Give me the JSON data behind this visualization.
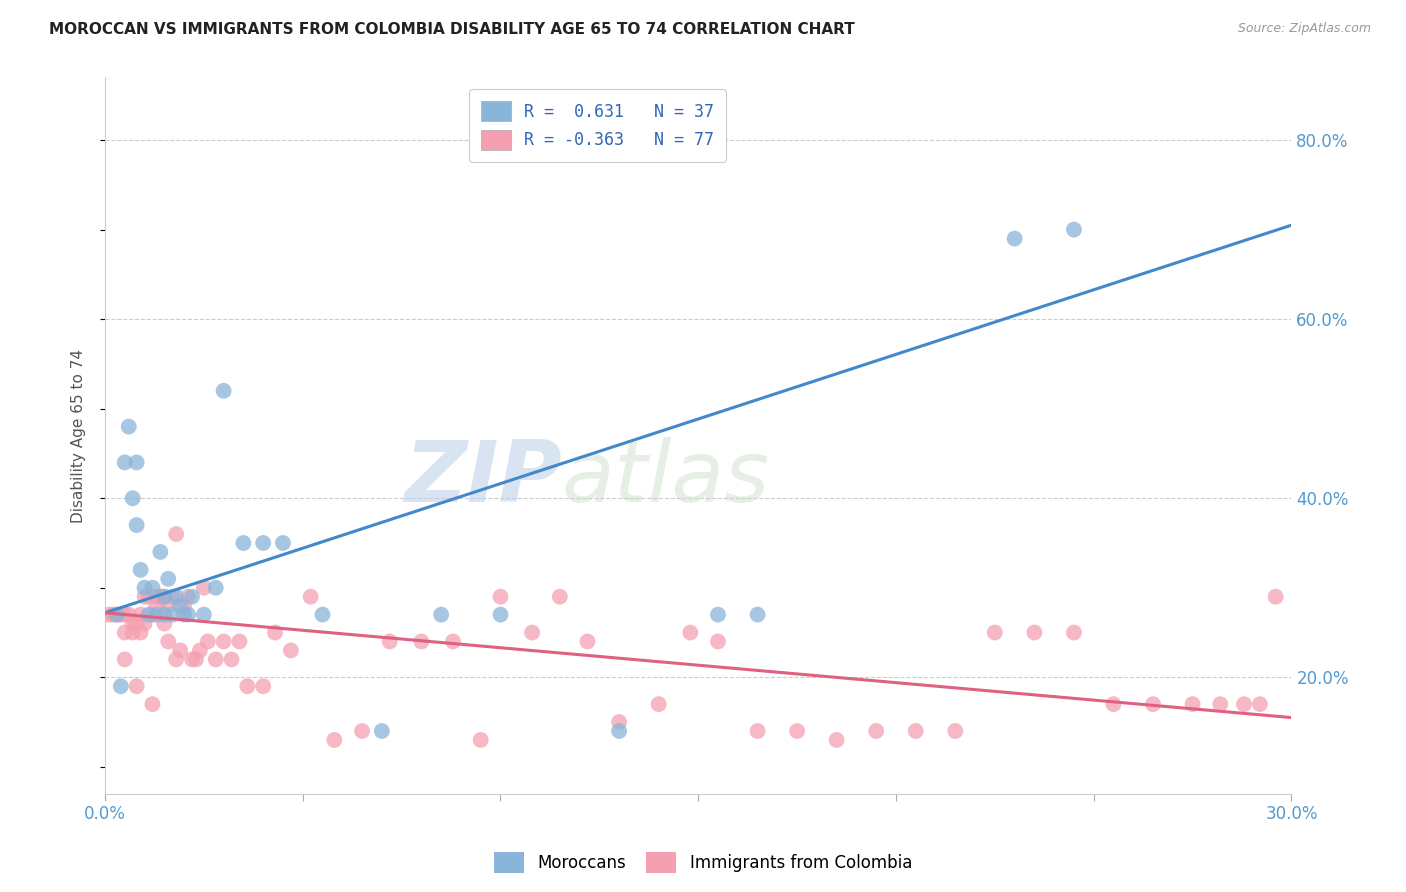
{
  "title": "MOROCCAN VS IMMIGRANTS FROM COLOMBIA DISABILITY AGE 65 TO 74 CORRELATION CHART",
  "source": "Source: ZipAtlas.com",
  "ylabel": "Disability Age 65 to 74",
  "x_min": 0.0,
  "x_max": 0.3,
  "y_min": 0.07,
  "y_max": 0.87,
  "x_ticks": [
    0.0,
    0.05,
    0.1,
    0.15,
    0.2,
    0.25,
    0.3
  ],
  "x_tick_labels": [
    "0.0%",
    "",
    "",
    "",
    "",
    "",
    "30.0%"
  ],
  "y_ticks_right": [
    0.2,
    0.4,
    0.6,
    0.8
  ],
  "y_tick_labels_right": [
    "20.0%",
    "40.0%",
    "60.0%",
    "80.0%"
  ],
  "blue_R": 0.631,
  "blue_N": 37,
  "pink_R": -0.363,
  "pink_N": 77,
  "blue_color": "#8ab4d9",
  "pink_color": "#f4a0b0",
  "blue_line_color": "#4488cc",
  "pink_line_color": "#e06080",
  "legend_label_blue": "Moroccans",
  "legend_label_pink": "Immigrants from Colombia",
  "watermark_zip": "ZIP",
  "watermark_atlas": "atlas",
  "blue_line_x0": 0.0,
  "blue_line_y0": 0.272,
  "blue_line_x1": 0.3,
  "blue_line_y1": 0.705,
  "pink_line_x0": 0.0,
  "pink_line_y0": 0.272,
  "pink_line_x1": 0.3,
  "pink_line_y1": 0.155,
  "blue_scatter_x": [
    0.003,
    0.004,
    0.005,
    0.006,
    0.007,
    0.008,
    0.008,
    0.009,
    0.01,
    0.011,
    0.012,
    0.013,
    0.014,
    0.015,
    0.015,
    0.016,
    0.017,
    0.018,
    0.019,
    0.02,
    0.021,
    0.022,
    0.025,
    0.028,
    0.03,
    0.035,
    0.04,
    0.045,
    0.055,
    0.07,
    0.085,
    0.1,
    0.13,
    0.155,
    0.165,
    0.23,
    0.245
  ],
  "blue_scatter_y": [
    0.27,
    0.19,
    0.44,
    0.48,
    0.4,
    0.44,
    0.37,
    0.32,
    0.3,
    0.27,
    0.3,
    0.27,
    0.34,
    0.27,
    0.29,
    0.31,
    0.27,
    0.29,
    0.28,
    0.27,
    0.27,
    0.29,
    0.27,
    0.3,
    0.52,
    0.35,
    0.35,
    0.35,
    0.27,
    0.14,
    0.27,
    0.27,
    0.14,
    0.27,
    0.27,
    0.69,
    0.7
  ],
  "pink_scatter_x": [
    0.001,
    0.002,
    0.003,
    0.004,
    0.005,
    0.005,
    0.006,
    0.007,
    0.007,
    0.008,
    0.009,
    0.009,
    0.01,
    0.01,
    0.011,
    0.012,
    0.013,
    0.013,
    0.014,
    0.014,
    0.015,
    0.015,
    0.016,
    0.016,
    0.017,
    0.018,
    0.018,
    0.019,
    0.02,
    0.021,
    0.022,
    0.023,
    0.024,
    0.025,
    0.026,
    0.028,
    0.03,
    0.032,
    0.034,
    0.036,
    0.04,
    0.043,
    0.047,
    0.052,
    0.058,
    0.065,
    0.072,
    0.08,
    0.088,
    0.095,
    0.1,
    0.108,
    0.115,
    0.122,
    0.13,
    0.14,
    0.148,
    0.155,
    0.165,
    0.175,
    0.185,
    0.195,
    0.205,
    0.215,
    0.225,
    0.235,
    0.245,
    0.255,
    0.265,
    0.275,
    0.282,
    0.288,
    0.292,
    0.296,
    0.005,
    0.008,
    0.012
  ],
  "pink_scatter_y": [
    0.27,
    0.27,
    0.27,
    0.27,
    0.27,
    0.25,
    0.27,
    0.25,
    0.26,
    0.26,
    0.25,
    0.27,
    0.26,
    0.29,
    0.29,
    0.27,
    0.29,
    0.28,
    0.29,
    0.29,
    0.26,
    0.29,
    0.28,
    0.24,
    0.29,
    0.22,
    0.36,
    0.23,
    0.28,
    0.29,
    0.22,
    0.22,
    0.23,
    0.3,
    0.24,
    0.22,
    0.24,
    0.22,
    0.24,
    0.19,
    0.19,
    0.25,
    0.23,
    0.29,
    0.13,
    0.14,
    0.24,
    0.24,
    0.24,
    0.13,
    0.29,
    0.25,
    0.29,
    0.24,
    0.15,
    0.17,
    0.25,
    0.24,
    0.14,
    0.14,
    0.13,
    0.14,
    0.14,
    0.14,
    0.25,
    0.25,
    0.25,
    0.17,
    0.17,
    0.17,
    0.17,
    0.17,
    0.17,
    0.29,
    0.22,
    0.19,
    0.17
  ]
}
